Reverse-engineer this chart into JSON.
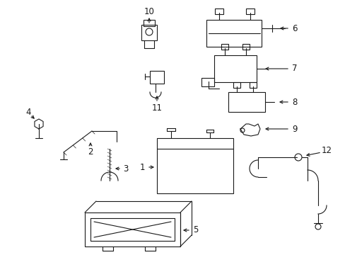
{
  "bg_color": "#ffffff",
  "line_color": "#1a1a1a",
  "line_width": 0.8,
  "label_fontsize": 8.5,
  "figw": 4.89,
  "figh": 3.6,
  "dpi": 100
}
